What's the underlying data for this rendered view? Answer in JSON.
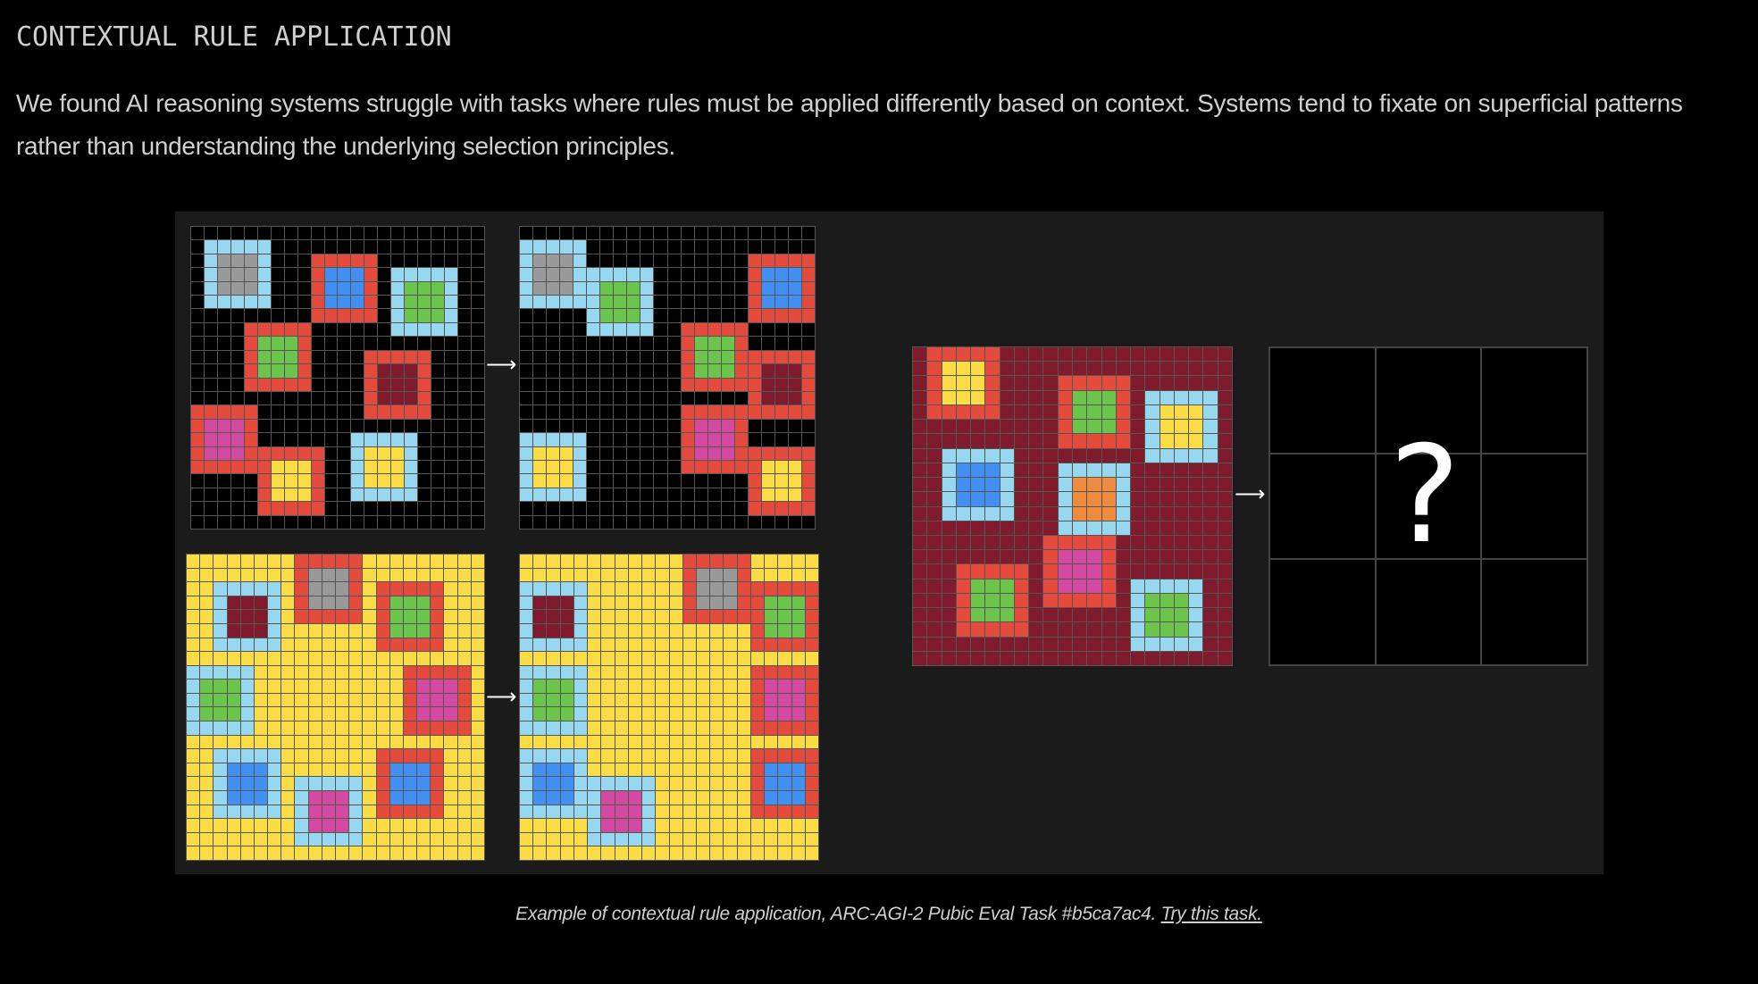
{
  "title": "CONTEXTUAL RULE APPLICATION",
  "intro": "We found AI reasoning systems struggle with tasks where rules must be applied differently based on context. Systems tend to fixate on superficial patterns rather than understanding the underlying selection principles.",
  "caption": {
    "text": "Example of contextual rule application, ARC-AGI-2 Pubic Eval Task #b5ca7ac4. ",
    "link": "Try this task."
  },
  "colors": {
    "black": "#000000",
    "yellow": "#FADC45",
    "red": "#E54B3C",
    "lightblue": "#98D7F0",
    "gray": "#999999",
    "blue": "#4390F5",
    "green": "#6CC44C",
    "maroon": "#801B2D",
    "magenta": "#D24AA0",
    "orange": "#EE8B3C",
    "white": "#FFFFFF"
  },
  "test_output_placeholder": "?",
  "grids": [
    {
      "id": "train1-input",
      "rows": 22,
      "cols": 22,
      "background": "black",
      "objects": [
        {
          "row": 1,
          "col": 1,
          "frame": "lightblue",
          "fill": "gray"
        },
        {
          "row": 2,
          "col": 9,
          "frame": "red",
          "fill": "blue"
        },
        {
          "row": 3,
          "col": 15,
          "frame": "lightblue",
          "fill": "green"
        },
        {
          "row": 7,
          "col": 4,
          "frame": "red",
          "fill": "green"
        },
        {
          "row": 9,
          "col": 13,
          "frame": "red",
          "fill": "maroon"
        },
        {
          "row": 13,
          "col": 0,
          "frame": "red",
          "fill": "magenta"
        },
        {
          "row": 16,
          "col": 5,
          "frame": "red",
          "fill": "yellow"
        },
        {
          "row": 15,
          "col": 12,
          "frame": "lightblue",
          "fill": "yellow"
        }
      ]
    },
    {
      "id": "train1-output",
      "rows": 22,
      "cols": 22,
      "background": "black",
      "objects": [
        {
          "row": 1,
          "col": 0,
          "frame": "lightblue",
          "fill": "gray"
        },
        {
          "row": 3,
          "col": 5,
          "frame": "lightblue",
          "fill": "green"
        },
        {
          "row": 2,
          "col": 17,
          "frame": "red",
          "fill": "blue"
        },
        {
          "row": 7,
          "col": 12,
          "frame": "red",
          "fill": "green"
        },
        {
          "row": 9,
          "col": 17,
          "frame": "red",
          "fill": "maroon"
        },
        {
          "row": 13,
          "col": 12,
          "frame": "red",
          "fill": "magenta"
        },
        {
          "row": 16,
          "col": 17,
          "frame": "red",
          "fill": "yellow"
        },
        {
          "row": 15,
          "col": 0,
          "frame": "lightblue",
          "fill": "yellow"
        }
      ]
    },
    {
      "id": "train2-input",
      "rows": 22,
      "cols": 22,
      "background": "yellow",
      "objects": [
        {
          "row": 2,
          "col": 2,
          "frame": "lightblue",
          "fill": "maroon"
        },
        {
          "row": 0,
          "col": 8,
          "frame": "red",
          "fill": "gray"
        },
        {
          "row": 2,
          "col": 14,
          "frame": "red",
          "fill": "green"
        },
        {
          "row": 8,
          "col": 0,
          "frame": "lightblue",
          "fill": "green"
        },
        {
          "row": 8,
          "col": 16,
          "frame": "red",
          "fill": "magenta"
        },
        {
          "row": 14,
          "col": 2,
          "frame": "lightblue",
          "fill": "blue"
        },
        {
          "row": 16,
          "col": 8,
          "frame": "lightblue",
          "fill": "magenta"
        },
        {
          "row": 14,
          "col": 14,
          "frame": "red",
          "fill": "blue"
        }
      ]
    },
    {
      "id": "train2-output",
      "rows": 22,
      "cols": 22,
      "background": "yellow",
      "objects": [
        {
          "row": 2,
          "col": 0,
          "frame": "lightblue",
          "fill": "maroon"
        },
        {
          "row": 0,
          "col": 12,
          "frame": "red",
          "fill": "gray"
        },
        {
          "row": 2,
          "col": 17,
          "frame": "red",
          "fill": "green"
        },
        {
          "row": 8,
          "col": 0,
          "frame": "lightblue",
          "fill": "green"
        },
        {
          "row": 8,
          "col": 17,
          "frame": "red",
          "fill": "magenta"
        },
        {
          "row": 14,
          "col": 0,
          "frame": "lightblue",
          "fill": "blue"
        },
        {
          "row": 16,
          "col": 5,
          "frame": "lightblue",
          "fill": "magenta"
        },
        {
          "row": 14,
          "col": 17,
          "frame": "red",
          "fill": "blue"
        }
      ]
    },
    {
      "id": "test-input",
      "rows": 22,
      "cols": 22,
      "background": "maroon",
      "objects": [
        {
          "row": 0,
          "col": 1,
          "frame": "red",
          "fill": "yellow"
        },
        {
          "row": 2,
          "col": 10,
          "frame": "red",
          "fill": "green"
        },
        {
          "row": 3,
          "col": 16,
          "frame": "lightblue",
          "fill": "yellow"
        },
        {
          "row": 7,
          "col": 2,
          "frame": "lightblue",
          "fill": "blue"
        },
        {
          "row": 8,
          "col": 10,
          "frame": "lightblue",
          "fill": "orange"
        },
        {
          "row": 13,
          "col": 9,
          "frame": "red",
          "fill": "magenta"
        },
        {
          "row": 15,
          "col": 3,
          "frame": "red",
          "fill": "green"
        },
        {
          "row": 16,
          "col": 15,
          "frame": "lightblue",
          "fill": "green"
        }
      ]
    }
  ]
}
